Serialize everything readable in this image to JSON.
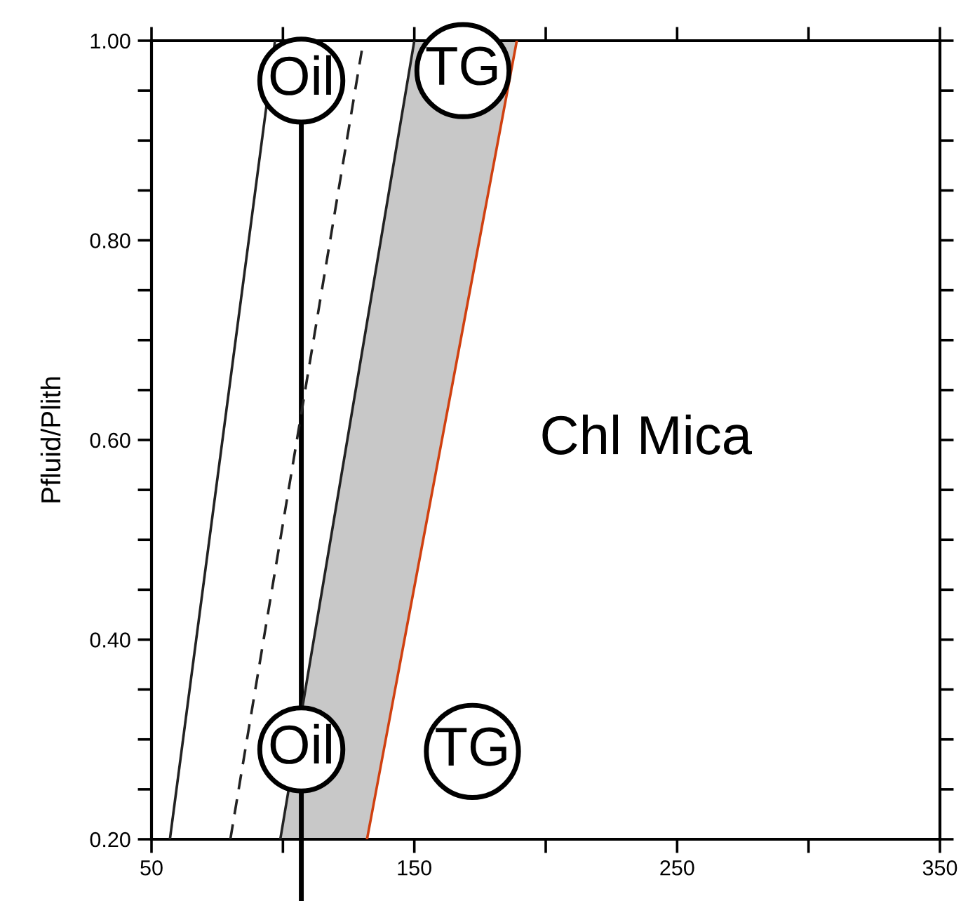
{
  "chart_data": {
    "type": "line",
    "ylabel": "Pfluid/Plith",
    "xlim": [
      50,
      350
    ],
    "ylim": [
      0.2,
      1.0
    ],
    "xticks": [
      50,
      {
        "value": 100,
        "label": null
      },
      150,
      {
        "value": 200,
        "label": null
      },
      250,
      {
        "value": 300,
        "label": null
      },
      350
    ],
    "yticks": [
      {
        "value": 0.2,
        "label": "0.20"
      },
      {
        "value": 0.25,
        "label": null
      },
      {
        "value": 0.3,
        "label": null
      },
      {
        "value": 0.35,
        "label": null
      },
      {
        "value": 0.4,
        "label": "0.40"
      },
      {
        "value": 0.45,
        "label": null
      },
      {
        "value": 0.5,
        "label": null
      },
      {
        "value": 0.55,
        "label": null
      },
      {
        "value": 0.6,
        "label": "0.60"
      },
      {
        "value": 0.65,
        "label": null
      },
      {
        "value": 0.7,
        "label": null
      },
      {
        "value": 0.75,
        "label": null
      },
      {
        "value": 0.8,
        "label": "0.80"
      },
      {
        "value": 0.85,
        "label": null
      },
      {
        "value": 0.9,
        "label": null
      },
      {
        "value": 0.95,
        "label": null
      },
      {
        "value": 1.0,
        "label": "1.00"
      }
    ],
    "grid": false,
    "legend": false,
    "marker": "none",
    "series": [
      {
        "color": "#222222",
        "x": [
          57,
          97
        ],
        "values": [
          0.2,
          1.0
        ],
        "line_style": "solid"
      },
      {
        "color": "#222222",
        "x": [
          80,
          130
        ],
        "values": [
          0.2,
          0.99
        ],
        "line_style": "dashed"
      },
      {
        "type": "area",
        "color": "#c8c8c8",
        "colors": [
          "#222222",
          "#d04010",
          "#d04010",
          "#222222"
        ],
        "x": [
          99,
          132,
          189,
          150
        ],
        "values": [
          0.2,
          0.2,
          1.0,
          1.0
        ]
      }
    ],
    "ref_lines": [
      {
        "axis": "x",
        "value": 107,
        "color": "#000000",
        "line_style": "solid"
      }
    ],
    "annotations": [
      {
        "text": "Oil",
        "x": 107,
        "y": 0.96
      },
      "TG",
      {
        "text": "Oil",
        "x": 107,
        "y": 0.29
      },
      "TG",
      "Chl Mica"
    ]
  }
}
